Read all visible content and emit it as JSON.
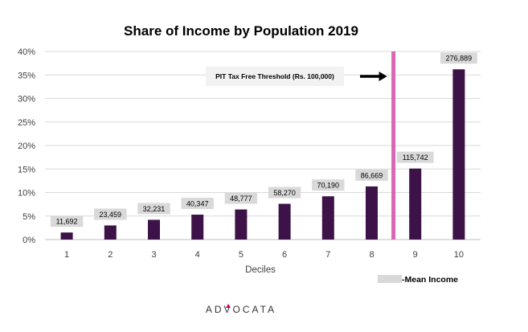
{
  "chart_data": {
    "type": "bar",
    "title": "Share of Income by Population 2019",
    "xlabel": "Deciles",
    "ylabel": "",
    "categories": [
      "1",
      "2",
      "3",
      "4",
      "5",
      "6",
      "7",
      "8",
      "9",
      "10"
    ],
    "values": [
      1.5,
      3.0,
      4.2,
      5.3,
      6.4,
      7.6,
      9.2,
      11.3,
      15.1,
      36.2
    ],
    "mean_income_labels": [
      "11,692",
      "23,459",
      "32,231",
      "40,347",
      "48,777",
      "58,270",
      "70,190",
      "86,669",
      "115,742",
      "276,889"
    ],
    "ylim": [
      0,
      40
    ],
    "yticks": [
      0,
      5,
      10,
      15,
      20,
      25,
      30,
      35,
      40
    ],
    "ytick_labels": [
      "0%",
      "5%",
      "10%",
      "15%",
      "20%",
      "25%",
      "30%",
      "35%",
      "40%"
    ],
    "grid": true,
    "legend": [
      {
        "name": "-Mean Income",
        "position": "bottom-right"
      }
    ],
    "threshold_line": {
      "label": "PIT Tax Free Threshold (Rs. 100,000)",
      "between_categories": [
        "8",
        "9"
      ]
    },
    "colors": {
      "bar": "#3d1248",
      "threshold": "#d966b4",
      "label_box": "#d9d9d9",
      "grid": "#d9d9d9",
      "axis": "#bfbfbf"
    }
  },
  "branding": {
    "logo_text": "ADVOCATA"
  }
}
